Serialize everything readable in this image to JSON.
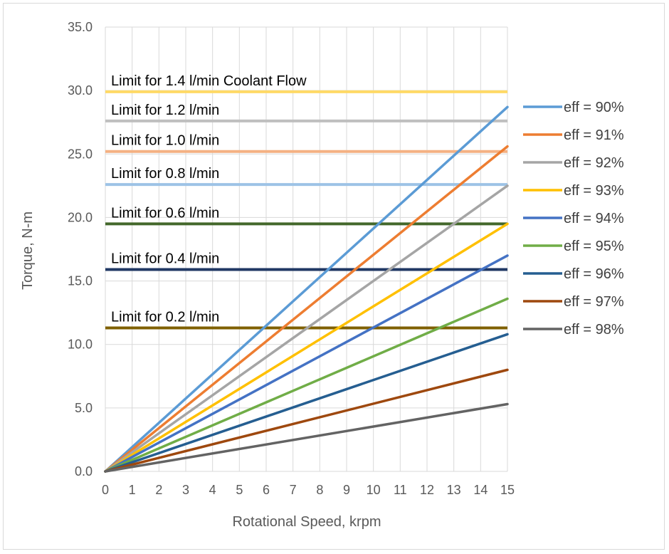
{
  "chart_data": {
    "type": "line",
    "xlabel": "Rotational Speed, krpm",
    "ylabel": "Torque, N-m",
    "xlim": [
      0,
      15
    ],
    "ylim": [
      0,
      35
    ],
    "grid": true,
    "legend_position": "right",
    "x_ticks": [
      "0",
      "1",
      "2",
      "3",
      "4",
      "5",
      "6",
      "7",
      "8",
      "9",
      "10",
      "11",
      "12",
      "13",
      "14",
      "15"
    ],
    "y_ticks": [
      "0.0",
      "5.0",
      "10.0",
      "15.0",
      "20.0",
      "25.0",
      "30.0",
      "35.0"
    ],
    "series": [
      {
        "name": "eff = 90%",
        "color": "#5b9bd5",
        "x": [
          0,
          15
        ],
        "y": [
          0,
          28.7
        ]
      },
      {
        "name": "eff = 91%",
        "color": "#ed7d31",
        "x": [
          0,
          15
        ],
        "y": [
          0,
          25.6
        ]
      },
      {
        "name": "eff = 92%",
        "color": "#a5a5a5",
        "x": [
          0,
          15
        ],
        "y": [
          0,
          22.5
        ]
      },
      {
        "name": "eff = 93%",
        "color": "#ffc000",
        "x": [
          0,
          15
        ],
        "y": [
          0,
          19.5
        ]
      },
      {
        "name": "eff = 94%",
        "color": "#4472c4",
        "x": [
          0,
          15
        ],
        "y": [
          0,
          17.0
        ]
      },
      {
        "name": "eff = 95%",
        "color": "#70ad47",
        "x": [
          0,
          15
        ],
        "y": [
          0,
          13.6
        ]
      },
      {
        "name": "eff = 96%",
        "color": "#255e91",
        "x": [
          0,
          15
        ],
        "y": [
          0,
          10.8
        ]
      },
      {
        "name": "eff = 97%",
        "color": "#9e480e",
        "x": [
          0,
          15
        ],
        "y": [
          0,
          8.0
        ]
      },
      {
        "name": "eff = 98%",
        "color": "#636363",
        "x": [
          0,
          15
        ],
        "y": [
          0,
          5.3
        ]
      }
    ],
    "limits": [
      {
        "label": "Limit for 1.4 l/min Coolant Flow",
        "value": 29.9,
        "color": "#ffd966"
      },
      {
        "label": "Limit for 1.2 l/min",
        "value": 27.6,
        "color": "#bfbfbf"
      },
      {
        "label": "Limit for 1.0 l/min",
        "value": 25.2,
        "color": "#f4b183"
      },
      {
        "label": "Limit for 0.8 l/min",
        "value": 22.6,
        "color": "#9dc3e6"
      },
      {
        "label": "Limit for 0.6 l/min",
        "value": 19.5,
        "color": "#43682b"
      },
      {
        "label": "Limit for 0.4 l/min",
        "value": 15.9,
        "color": "#203864"
      },
      {
        "label": "Limit for 0.2 l/min",
        "value": 11.3,
        "color": "#7f6000"
      }
    ]
  }
}
